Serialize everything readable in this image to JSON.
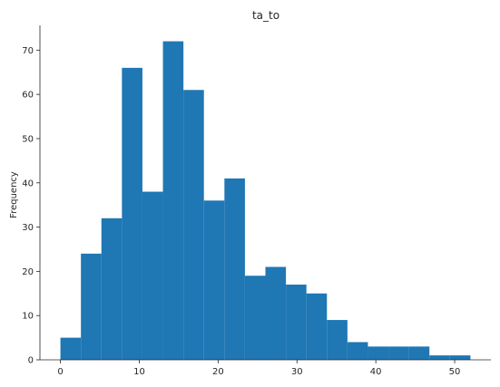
{
  "chart_data": {
    "type": "bar",
    "title": "ta_to",
    "xlabel": "",
    "ylabel": "Frequency",
    "bar_color": "#1f77b4",
    "xlim": [
      -2.6,
      54.6
    ],
    "ylim": [
      0,
      75.6
    ],
    "x_ticks": [
      0,
      10,
      20,
      30,
      40,
      50
    ],
    "y_ticks": [
      0,
      10,
      20,
      30,
      40,
      50,
      60,
      70
    ],
    "grid": false,
    "bins": [
      {
        "x0": 0.0,
        "x1": 2.6,
        "count": 5
      },
      {
        "x0": 2.6,
        "x1": 5.2,
        "count": 24
      },
      {
        "x0": 5.2,
        "x1": 7.8,
        "count": 32
      },
      {
        "x0": 7.8,
        "x1": 10.4,
        "count": 66
      },
      {
        "x0": 10.4,
        "x1": 13.0,
        "count": 38
      },
      {
        "x0": 13.0,
        "x1": 15.6,
        "count": 72
      },
      {
        "x0": 15.6,
        "x1": 18.2,
        "count": 61
      },
      {
        "x0": 18.2,
        "x1": 20.8,
        "count": 36
      },
      {
        "x0": 20.8,
        "x1": 23.4,
        "count": 41
      },
      {
        "x0": 23.4,
        "x1": 26.0,
        "count": 19
      },
      {
        "x0": 26.0,
        "x1": 28.6,
        "count": 21
      },
      {
        "x0": 28.6,
        "x1": 31.2,
        "count": 17
      },
      {
        "x0": 31.2,
        "x1": 33.8,
        "count": 15
      },
      {
        "x0": 33.8,
        "x1": 36.4,
        "count": 9
      },
      {
        "x0": 36.4,
        "x1": 39.0,
        "count": 4
      },
      {
        "x0": 39.0,
        "x1": 41.6,
        "count": 3
      },
      {
        "x0": 41.6,
        "x1": 44.2,
        "count": 3
      },
      {
        "x0": 44.2,
        "x1": 46.8,
        "count": 3
      },
      {
        "x0": 46.8,
        "x1": 49.4,
        "count": 1
      },
      {
        "x0": 49.4,
        "x1": 52.0,
        "count": 1
      }
    ]
  }
}
